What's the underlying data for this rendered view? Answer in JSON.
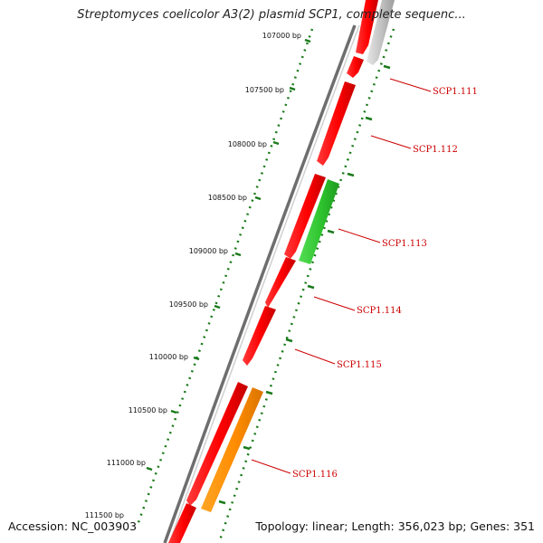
{
  "title": "Streptomyces coelicolor A3(2) plasmid SCP1, complete sequenc...",
  "footer": {
    "accession": "Accession: NC_003903",
    "summary": "Topology: linear; Length: 356,023 bp; Genes: 351"
  },
  "colors": {
    "backbone": "#777777",
    "gene_red": "#ff0000",
    "gene_green": "#33cc33",
    "gene_orange": "#ff8c00",
    "gene_gray": "#c0c0c0",
    "tick_green": "#1a7a1a",
    "label_red": "#cc0000"
  },
  "ticks": [
    {
      "label": "107000 bp"
    },
    {
      "label": "107500 bp"
    },
    {
      "label": "108000 bp"
    },
    {
      "label": "108500 bp"
    },
    {
      "label": "109000 bp"
    },
    {
      "label": "109500 bp"
    },
    {
      "label": "110000 bp"
    },
    {
      "label": "110500 bp"
    },
    {
      "label": "111000 bp"
    },
    {
      "label": "111500 bp"
    }
  ],
  "gene_labels": [
    {
      "label": "SCP1.111"
    },
    {
      "label": "SCP1.112"
    },
    {
      "label": "SCP1.113"
    },
    {
      "label": "SCP1.114"
    },
    {
      "label": "SCP1.115"
    },
    {
      "label": "SCP1.116"
    }
  ]
}
